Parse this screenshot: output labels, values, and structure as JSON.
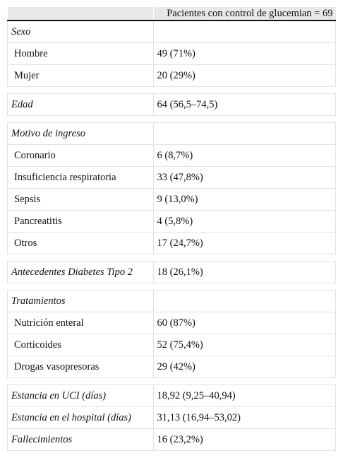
{
  "table": {
    "header": [
      "Pacientes con control de glucemian = 69"
    ],
    "groups": [
      {
        "heading": [
          [
            "Sexo"
          ]
        ],
        "items": [
          [
            "Hombre",
            "49 (71%)"
          ],
          [
            "Mujer",
            "20 (29%)"
          ]
        ]
      },
      {
        "heading": [
          [
            "Edad",
            "64 (56,5–74,5)"
          ]
        ],
        "items": []
      },
      {
        "heading": [
          [
            "Motivo de ingreso"
          ]
        ],
        "items": [
          [
            "Coronario",
            "6 (8,7%)"
          ],
          [
            "Insuficiencia respiratoria",
            "33 (47,8%)"
          ],
          [
            "Sepsis",
            "9 (13,0%)"
          ],
          [
            "Pancreatitis",
            "4 (5,8%)"
          ],
          [
            "Otros",
            "17 (24,7%)"
          ]
        ]
      },
      {
        "heading": [
          [
            "Antecedentes Diabetes Tipo 2",
            "18 (26,1%)"
          ]
        ],
        "items": []
      },
      {
        "heading": [
          [
            "Tratamientos"
          ]
        ],
        "items": [
          [
            "Nutrición enteral",
            "60 (87%)"
          ],
          [
            "Corticoides",
            "52 (75,4%)"
          ],
          [
            "Drogas vasopresoras",
            "29 (42%)"
          ]
        ]
      },
      {
        "heading": [
          [
            "Estancia en UCI (días)",
            "18,92 (9,25–40,94)"
          ],
          [
            "Estancia en el hospital (días)",
            "31,13 (16,94–53,02)"
          ],
          [
            "Fallecimientos",
            "16 (23,2%)"
          ]
        ],
        "items": []
      }
    ]
  }
}
